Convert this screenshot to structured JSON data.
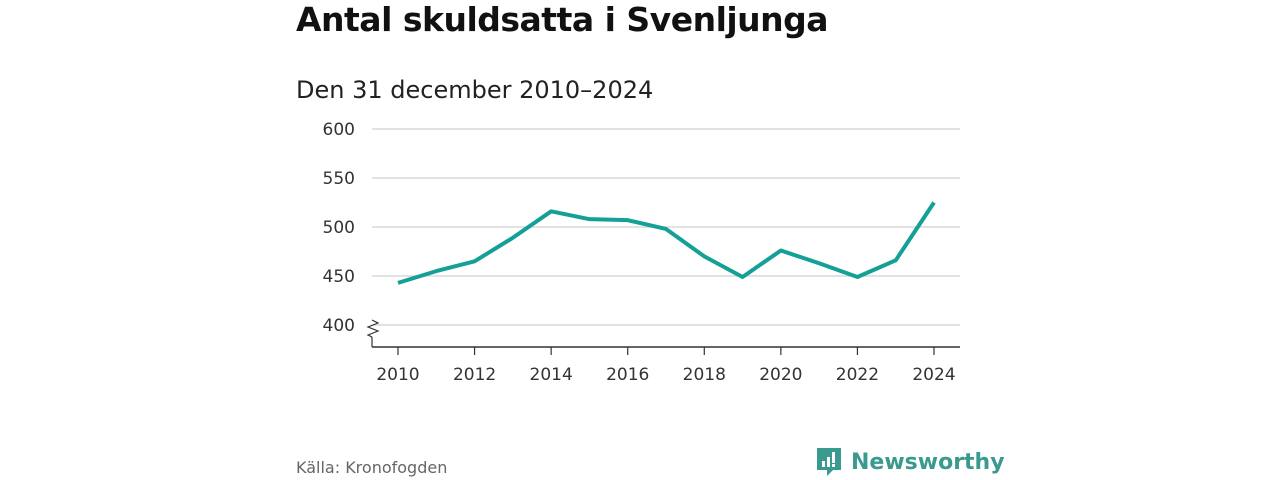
{
  "title": "Antal skuldsatta i Svenljunga",
  "subtitle": "Den 31 december 2010–2024",
  "source": "Källa: Kronofogden",
  "brand": "Newsworthy",
  "colors": {
    "line": "#14a096",
    "grid": "#d9d9d9",
    "brand": "#3a9a8f"
  },
  "chart_data": {
    "type": "line",
    "title": "Antal skuldsatta i Svenljunga",
    "subtitle": "Den 31 december 2010–2024",
    "xlabel": "",
    "ylabel": "",
    "x": [
      2010,
      2011,
      2012,
      2013,
      2014,
      2015,
      2016,
      2017,
      2018,
      2019,
      2020,
      2021,
      2022,
      2023,
      2024
    ],
    "series": [
      {
        "name": "Antal skuldsatta",
        "values": [
          443,
          455,
          465,
          489,
          516,
          508,
          507,
          498,
          470,
          449,
          476,
          463,
          449,
          466,
          525
        ]
      }
    ],
    "ylim": [
      400,
      600
    ],
    "yticks": [
      "400",
      "450",
      "500",
      "550",
      "600"
    ],
    "xticks": [
      "2010",
      "2012",
      "2014",
      "2016",
      "2018",
      "2020",
      "2022",
      "2024"
    ],
    "grid": true,
    "axis_break": true
  }
}
